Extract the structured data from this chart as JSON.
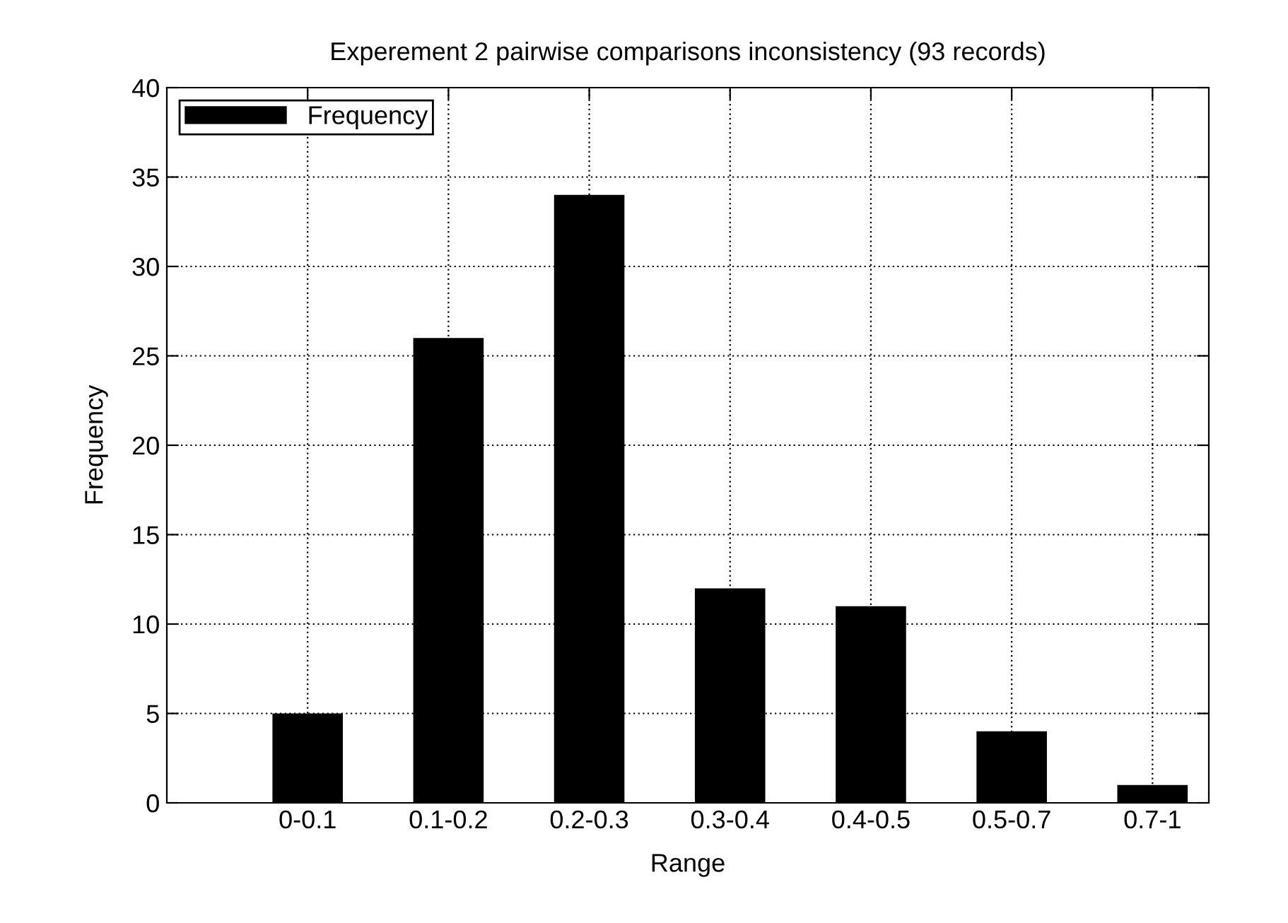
{
  "chart_data": {
    "type": "bar",
    "title": "Experement 2 pairwise comparisons inconsistency (93 records)",
    "xlabel": "Range",
    "ylabel": "Frequency",
    "categories": [
      "0-0.1",
      "0.1-0.2",
      "0.2-0.3",
      "0.3-0.4",
      "0.4-0.5",
      "0.5-0.7",
      "0.7-1"
    ],
    "series": [
      {
        "name": "Frequency",
        "color": "#000000",
        "values": [
          5,
          26,
          34,
          12,
          11,
          4,
          1
        ]
      }
    ],
    "ylim": [
      0,
      40
    ],
    "yticks": [
      0,
      5,
      10,
      15,
      20,
      25,
      30,
      35,
      40
    ],
    "grid": true,
    "legend": "top left"
  }
}
